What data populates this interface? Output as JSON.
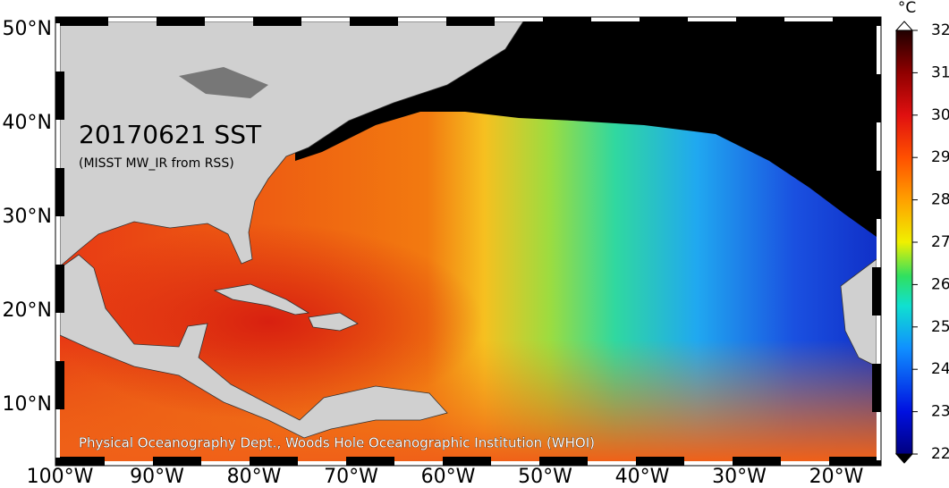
{
  "map": {
    "title": "20170621 SST",
    "subtitle": "(MISST MW_IR from RSS)",
    "credit": "Physical Oceanography Dept., Woods Hole Oceanographic Institution (WHOI)",
    "lat_labels": [
      "50°N",
      "40°N",
      "30°N",
      "20°N",
      "10°N"
    ],
    "lon_labels": [
      "100°W",
      "90°W",
      "80°W",
      "70°W",
      "60°W",
      "50°W",
      "40°W",
      "30°W",
      "20°W"
    ]
  },
  "colorbar": {
    "unit": "°C",
    "range": [
      22,
      32
    ],
    "ticks": [
      22,
      23,
      24,
      25,
      26,
      27,
      28,
      29,
      30,
      31,
      32
    ]
  }
}
